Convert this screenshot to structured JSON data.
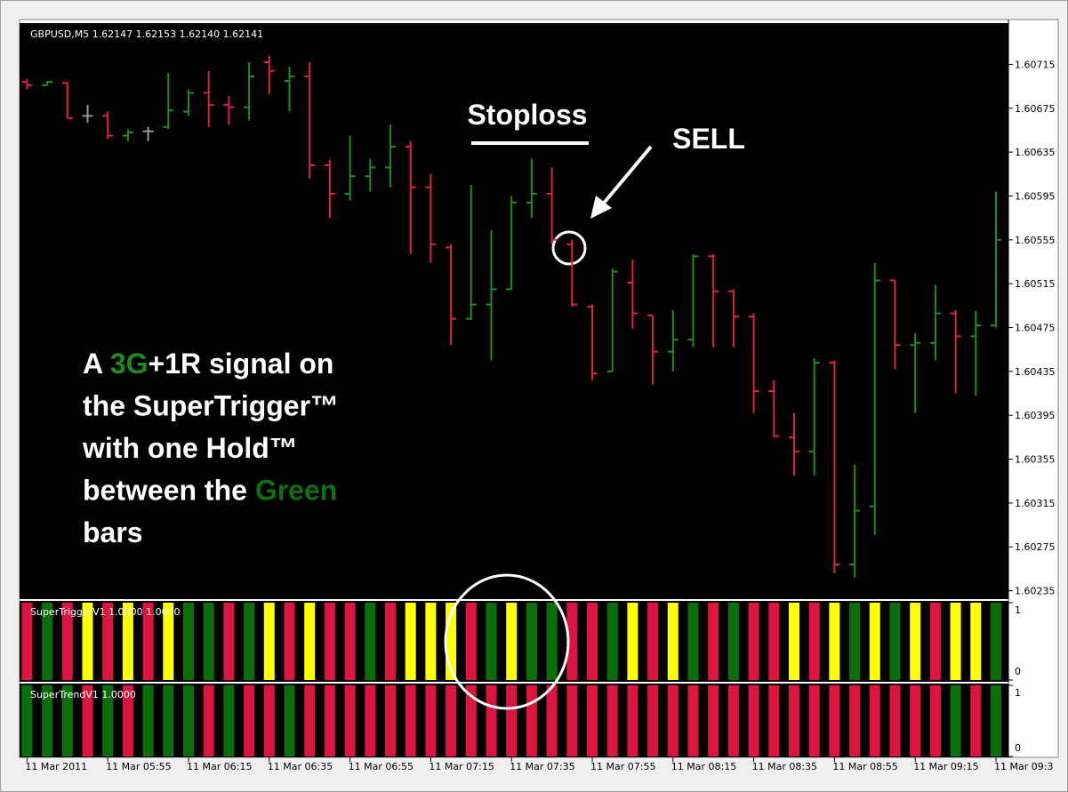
{
  "chart_data": {
    "type": "ohlc",
    "title": "GBPUSD,M5  1.62147 1.62153 1.62140 1.62141",
    "categories": [
      "11 Mar 2011",
      null,
      null,
      null,
      "11 Mar 05:55",
      null,
      null,
      null,
      "11 Mar 06:15",
      null,
      null,
      null,
      "11 Mar 06:35",
      null,
      null,
      null,
      "11 Mar 06:55",
      null,
      null,
      null,
      "11 Mar 07:15",
      null,
      null,
      null,
      "11 Mar 07:35",
      null,
      null,
      null,
      "11 Mar 07:55",
      null,
      null,
      null,
      "11 Mar 08:15",
      null,
      null,
      null,
      "11 Mar 08:35",
      null,
      null,
      null,
      "11 Mar 08:55",
      null,
      null,
      null,
      "11 Mar 09:15",
      null,
      null,
      null,
      "11 Mar 09:3"
    ],
    "open": [
      1.60699,
      1.60696,
      1.60698,
      1.60668,
      1.60668,
      1.6065,
      1.60654,
      1.60658,
      1.60672,
      1.60689,
      1.60678,
      1.60676,
      1.60717,
      1.607,
      1.60704,
      1.60623,
      1.60597,
      1.60613,
      1.60621,
      1.6064,
      1.60603,
      1.60548,
      1.60483,
      1.60496,
      1.6051,
      1.60589,
      1.60597,
      1.60551,
      1.60494,
      1.60435,
      1.60516,
      1.60486,
      1.60453,
      1.60464,
      1.6054,
      1.60508,
      1.60485,
      1.60417,
      1.60375,
      1.60362,
      1.60443,
      1.60259,
      1.60312,
      1.60518,
      1.60459,
      1.60461,
      1.60488,
      1.60467,
      1.60477
    ],
    "high": [
      1.60702,
      1.607,
      1.60699,
      1.60678,
      1.60672,
      1.60656,
      1.60658,
      1.60707,
      1.60692,
      1.60709,
      1.60686,
      1.60717,
      1.60723,
      1.60713,
      1.60717,
      1.60628,
      1.6065,
      1.60629,
      1.6066,
      1.60645,
      1.60615,
      1.60551,
      1.60605,
      1.60564,
      1.60595,
      1.60629,
      1.60621,
      1.60555,
      1.60496,
      1.60529,
      1.60537,
      1.60486,
      1.60491,
      1.60542,
      1.60542,
      1.6051,
      1.60488,
      1.60427,
      1.60397,
      1.60447,
      1.60445,
      1.6035,
      1.60534,
      1.60518,
      1.6047,
      1.60514,
      1.60491,
      1.6049,
      1.60599
    ],
    "low": [
      1.60692,
      1.60696,
      1.60666,
      1.60662,
      1.60647,
      1.60645,
      1.60645,
      1.60656,
      1.60668,
      1.60658,
      1.6066,
      1.60664,
      1.60688,
      1.60672,
      1.60611,
      1.60575,
      1.60591,
      1.60599,
      1.60603,
      1.60542,
      1.60534,
      1.60459,
      1.60482,
      1.60445,
      1.6051,
      1.60575,
      1.60551,
      1.60494,
      1.60427,
      1.60435,
      1.60474,
      1.60423,
      1.60435,
      1.60457,
      1.60457,
      1.60457,
      1.60397,
      1.60375,
      1.6034,
      1.6034,
      1.60251,
      1.60247,
      1.60286,
      1.60437,
      1.60397,
      1.60445,
      1.60415,
      1.60413,
      1.60475
    ],
    "close": [
      1.60696,
      1.60699,
      1.60666,
      1.60668,
      1.6065,
      1.60653,
      1.60654,
      1.60673,
      1.60689,
      1.60678,
      1.60676,
      1.60704,
      1.60709,
      1.60704,
      1.60623,
      1.60597,
      1.60613,
      1.60621,
      1.6064,
      1.60603,
      1.60551,
      1.60483,
      1.60496,
      1.6051,
      1.60589,
      1.60597,
      1.60555,
      1.60496,
      1.60433,
      1.60526,
      1.60488,
      1.60453,
      1.60464,
      1.6054,
      1.60508,
      1.60485,
      1.60417,
      1.60376,
      1.60362,
      1.60443,
      1.60259,
      1.60308,
      1.60518,
      1.60459,
      1.60461,
      1.60488,
      1.60467,
      1.60477,
      1.60555
    ],
    "up_color": "#1e8c1e",
    "down_color": "#e0204a",
    "flat_color": "#9a9a9a",
    "ylim": [
      1.60229,
      1.60751
    ],
    "yticks": [
      1.60715,
      1.60675,
      1.60635,
      1.60595,
      1.60555,
      1.60515,
      1.60475,
      1.60435,
      1.60395,
      1.60355,
      1.60315,
      1.60275,
      1.60235
    ],
    "annotations": [
      "Stoploss",
      "SELL"
    ],
    "callout": [
      [
        {
          "text": "A "
        },
        {
          "text": "3G",
          "color": "#1e8c1e"
        },
        {
          "text": "+1R signal on"
        }
      ],
      [
        {
          "text": "the SuperTrigger™"
        }
      ],
      [
        {
          "text": "with one Hold™"
        }
      ],
      [
        {
          "text": "between the "
        },
        {
          "text": "Green",
          "color": "#0f6e0f"
        }
      ],
      [
        {
          "text": "bars"
        }
      ]
    ],
    "indicators": [
      {
        "type": "bar",
        "name": "SuperTriggerV1 1.0000 1.0000",
        "values": [
          1,
          1,
          1,
          1,
          1,
          1,
          1,
          1,
          1,
          1,
          1,
          1,
          1,
          1,
          1,
          1,
          1,
          1,
          1,
          1,
          1,
          1,
          1,
          1,
          1,
          1,
          1,
          1,
          1,
          1,
          1,
          1,
          1,
          1,
          1,
          1,
          1,
          1,
          1,
          1,
          1,
          1,
          1,
          1,
          1,
          1,
          1,
          1,
          1
        ],
        "colors": [
          "#dc1440",
          "#0a6e0a",
          "#dc1440",
          "#ffff00",
          "#dc1440",
          "#ffff00",
          "#dc1440",
          "#ffff00",
          "#0a6e0a",
          "#0a6e0a",
          "#dc1440",
          "#0a6e0a",
          "#ffff00",
          "#dc1440",
          "#ffff00",
          "#dc1440",
          "#dc1440",
          "#0a6e0a",
          "#dc1440",
          "#ffff00",
          "#ffff00",
          "#ffff00",
          "#dc1440",
          "#0a6e0a",
          "#ffff00",
          "#0a6e0a",
          "#0a6e0a",
          "#dc1440",
          "#dc1440",
          "#0a6e0a",
          "#ffff00",
          "#dc1440",
          "#ffff00",
          "#0a6e0a",
          "#dc1440",
          "#0a6e0a",
          "#dc1440",
          "#dc1440",
          "#ffff00",
          "#dc1440",
          "#ffff00",
          "#0a6e0a",
          "#ffff00",
          "#0a6e0a",
          "#ffff00",
          "#dc1440",
          "#ffff00",
          "#ffff00",
          "#0a6e0a"
        ],
        "ylim": [
          0,
          1
        ],
        "yticks": [
          1,
          0
        ]
      },
      {
        "type": "bar",
        "name": "SuperTrendV1 1.0000",
        "values": [
          1,
          1,
          1,
          1,
          1,
          1,
          1,
          1,
          1,
          1,
          1,
          1,
          1,
          1,
          1,
          1,
          1,
          1,
          1,
          1,
          1,
          1,
          1,
          1,
          1,
          1,
          1,
          1,
          1,
          1,
          1,
          1,
          1,
          1,
          1,
          1,
          1,
          1,
          1,
          1,
          1,
          1,
          1,
          1,
          1,
          1,
          1,
          1,
          1
        ],
        "colors": [
          "#0a6e0a",
          "#0a6e0a",
          "#0a6e0a",
          "#dc1440",
          "#0a6e0a",
          "#dc1440",
          "#0a6e0a",
          "#0a6e0a",
          "#0a6e0a",
          "#dc1440",
          "#0a6e0a",
          "#dc1440",
          "#dc1440",
          "#0a6e0a",
          "#dc1440",
          "#dc1440",
          "#dc1440",
          "#dc1440",
          "#dc1440",
          "#dc1440",
          "#dc1440",
          "#dc1440",
          "#dc1440",
          "#dc1440",
          "#dc1440",
          "#dc1440",
          "#dc1440",
          "#dc1440",
          "#dc1440",
          "#dc1440",
          "#dc1440",
          "#dc1440",
          "#dc1440",
          "#dc1440",
          "#dc1440",
          "#dc1440",
          "#dc1440",
          "#dc1440",
          "#dc1440",
          "#dc1440",
          "#dc1440",
          "#dc1440",
          "#dc1440",
          "#dc1440",
          "#dc1440",
          "#dc1440",
          "#0a6e0a",
          "#dc1440",
          "#0a6e0a"
        ],
        "ylim": [
          0,
          1
        ],
        "yticks": [
          1,
          0
        ]
      }
    ]
  }
}
